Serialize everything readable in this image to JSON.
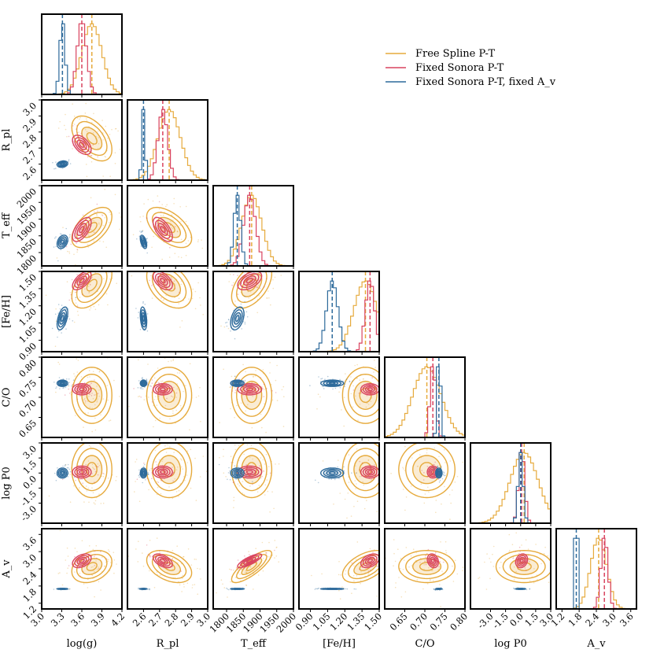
{
  "chart_data": {
    "type": "corner",
    "title": "",
    "params": [
      {
        "label": "log(g)",
        "range": [
          3.0,
          4.2
        ],
        "ticks": [
          "3.0",
          "3.3",
          "3.6",
          "3.9",
          "4.2"
        ]
      },
      {
        "label": "R_pl",
        "range": [
          2.5,
          3.0
        ],
        "ticks": [
          "2.6",
          "2.7",
          "2.8",
          "2.9",
          "3.0"
        ]
      },
      {
        "label": "T_eff",
        "range": [
          1760,
          2000
        ],
        "ticks": [
          "1800",
          "1850",
          "1900",
          "1950",
          "2000"
        ]
      },
      {
        "label": "[Fe/H]",
        "range": [
          0.8,
          1.5
        ],
        "ticks": [
          "0.90",
          "1.05",
          "1.20",
          "1.35",
          "1.50"
        ]
      },
      {
        "label": "C/O",
        "range": [
          0.6,
          0.8
        ],
        "ticks": [
          "0.65",
          "0.70",
          "0.75",
          "0.80"
        ]
      },
      {
        "label": "log P0",
        "range": [
          -5.0,
          3.0
        ],
        "ticks": [
          "-3.0",
          "-1.5",
          "0.0",
          "1.5",
          "3.0"
        ]
      },
      {
        "label": "A_v",
        "range": [
          1.0,
          3.8
        ],
        "ticks": [
          "1.2",
          "1.8",
          "2.4",
          "3.0",
          "3.6"
        ]
      }
    ],
    "ylabels": [
      "",
      "R_pl",
      "T_eff",
      "[Fe/H]",
      "C/O",
      "log P0",
      "A_v"
    ],
    "ytick_labels": [
      [],
      [
        "2.6",
        "2.7",
        "2.8",
        "2.9",
        "3.0"
      ],
      [
        "1800",
        "1850",
        "1900",
        "1950",
        "2000"
      ],
      [
        "0.90",
        "1.05",
        "1.20",
        "1.35",
        "1.50"
      ],
      [
        "0.65",
        "0.70",
        "0.75",
        "0.80"
      ],
      [
        "-3.0",
        "-1.5",
        "0.0",
        "1.5",
        "3.0"
      ],
      [
        "1.2",
        "1.8",
        "2.4",
        "3.0",
        "3.6"
      ]
    ],
    "series": [
      {
        "name": "Free Spline P-T",
        "color": "#E6AA3C",
        "medians": [
          3.75,
          2.76,
          1875,
          1.38,
          0.705,
          0.35,
          2.48
        ],
        "sigmas": [
          0.15,
          0.07,
          30,
          0.1,
          0.035,
          1.4,
          0.28
        ]
      },
      {
        "name": "Fixed Sonora P-T",
        "color": "#D9435F",
        "medians": [
          3.6,
          2.72,
          1869,
          1.42,
          0.72,
          0.1,
          2.68
        ],
        "sigmas": [
          0.07,
          0.03,
          18,
          0.04,
          0.007,
          0.3,
          0.12
        ]
      },
      {
        "name": "Fixed Sonora P-T, fixed A_v",
        "color": "#2D6A9B",
        "medians": [
          3.31,
          2.6,
          1832,
          1.09,
          0.735,
          0.0,
          1.7
        ],
        "sigmas": [
          0.04,
          0.01,
          10,
          0.05,
          0.004,
          0.25,
          0.01
        ]
      }
    ],
    "legend": [
      "Free Spline P-T",
      "Fixed Sonora P-T",
      "Fixed Sonora P-T, fixed A_v"
    ],
    "legend_position": "top-right",
    "grid": false
  }
}
